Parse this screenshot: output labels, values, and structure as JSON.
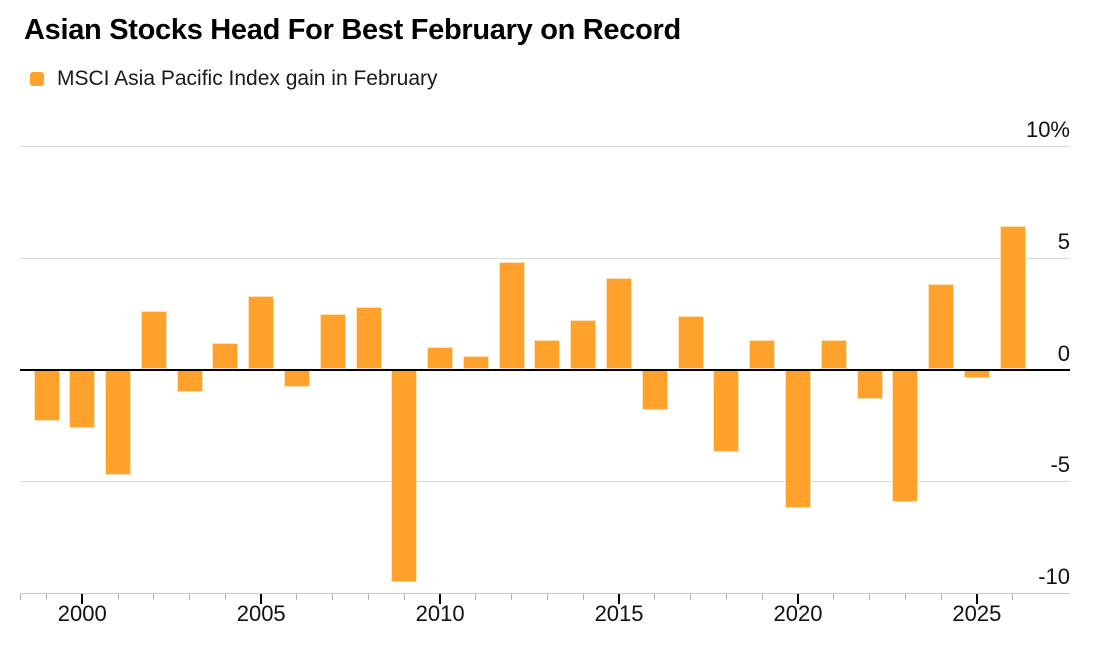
{
  "page": {
    "title": "Asian Stocks Head For Best February on Record"
  },
  "legend": {
    "label": "MSCI Asia Pacific Index gain in February",
    "swatch_color": "#FFA12B"
  },
  "chart_data": {
    "type": "bar",
    "title": "Asian Stocks Head For Best February on Record",
    "series_name": "MSCI Asia Pacific Index gain in February",
    "unit": "%",
    "categories": [
      1999,
      2000,
      2001,
      2002,
      2003,
      2004,
      2005,
      2006,
      2007,
      2008,
      2009,
      2010,
      2011,
      2012,
      2013,
      2014,
      2015,
      2016,
      2017,
      2018,
      2019,
      2020,
      2021,
      2022,
      2023,
      2024,
      2025,
      2026
    ],
    "values": [
      -2.3,
      -2.6,
      -4.7,
      2.6,
      -1.0,
      1.2,
      3.3,
      -0.8,
      2.5,
      2.8,
      -9.5,
      1.0,
      0.6,
      4.8,
      1.3,
      2.2,
      4.1,
      -1.8,
      2.4,
      -3.7,
      1.3,
      -6.2,
      1.3,
      -1.3,
      -5.9,
      3.8,
      -0.4,
      6.4
    ],
    "ylim": [
      -10,
      10
    ],
    "yticks": [
      {
        "value": 10,
        "label": "10%"
      },
      {
        "value": 5,
        "label": "5"
      },
      {
        "value": 0,
        "label": "0"
      },
      {
        "value": -5,
        "label": "-5"
      },
      {
        "value": -10,
        "label": "-10"
      }
    ],
    "xticks_major": [
      2000,
      2005,
      2010,
      2015,
      2020,
      2025
    ],
    "grid": true,
    "legend_position": "top-left",
    "bar_color": "#FFA12B",
    "bar_edge_color": "#FFE2B4",
    "grid_color": "#D9D9D9",
    "zero_line_color": "#000000",
    "axis_tick_minor_color": "#B0B0B0",
    "axis_tick_major_color": "#000000"
  }
}
